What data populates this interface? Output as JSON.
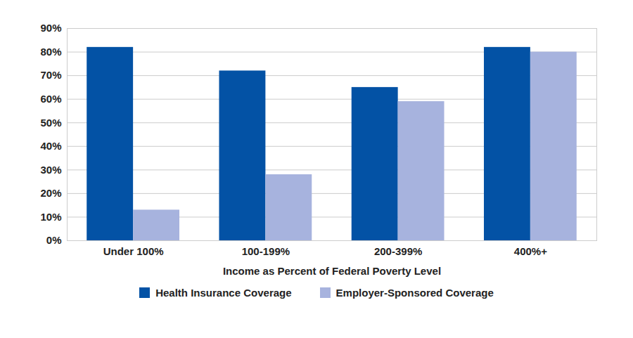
{
  "chart_data": {
    "type": "bar",
    "x_label": "Income as Percent of Federal Poverty Level",
    "categories": [
      "Under 100%",
      "100-199%",
      "200-399%",
      "400%+"
    ],
    "series": [
      {
        "name": "Health Insurance Coverage",
        "color": "#0352a5",
        "values": [
          82,
          72,
          65,
          82
        ]
      },
      {
        "name": "Employer-Sponsored Coverage",
        "color": "#a7b3de",
        "values": [
          13,
          28,
          59,
          80
        ]
      }
    ],
    "ylim": [
      0,
      90
    ],
    "yticks": [
      {
        "value": 0,
        "label": "0%"
      },
      {
        "value": 10,
        "label": "10%"
      },
      {
        "value": 20,
        "label": "20%"
      },
      {
        "value": 30,
        "label": "30%"
      },
      {
        "value": 40,
        "label": "40%"
      },
      {
        "value": 50,
        "label": "50%"
      },
      {
        "value": 60,
        "label": "60%"
      },
      {
        "value": 70,
        "label": "70%"
      },
      {
        "value": 80,
        "label": "80%"
      },
      {
        "value": 90,
        "label": "90%"
      }
    ],
    "grid": true,
    "legend": "bottom"
  }
}
